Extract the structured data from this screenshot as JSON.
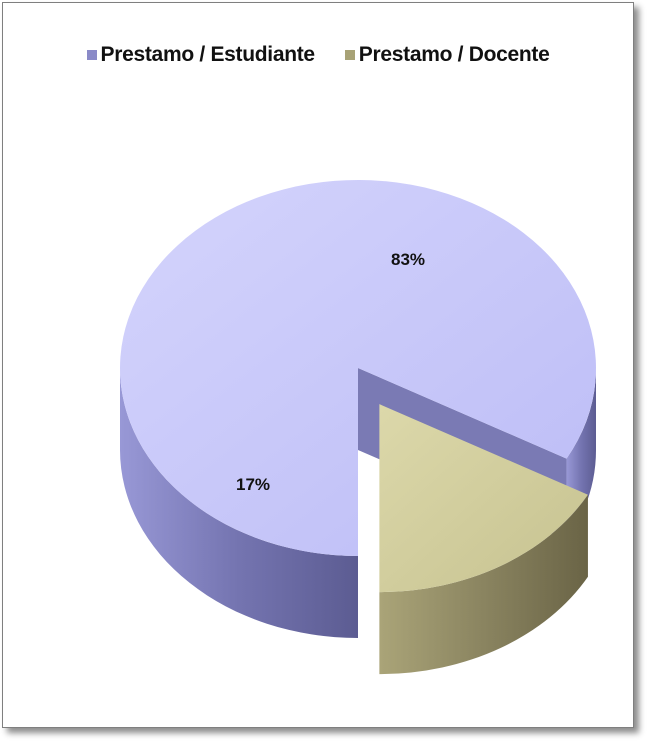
{
  "chart_data": {
    "type": "pie",
    "title": "",
    "legend": {
      "placement": "top"
    },
    "slices": [
      {
        "name": "Prestamo / Estudiante",
        "value": 83,
        "label": "83%",
        "color": "#c5c5fa",
        "side_color": "#8a8ac8"
      },
      {
        "name": "Prestamo / Docente",
        "value": 17,
        "label": "17%",
        "color": "#d2ce9e",
        "side_color": "#a8a276"
      }
    ]
  }
}
